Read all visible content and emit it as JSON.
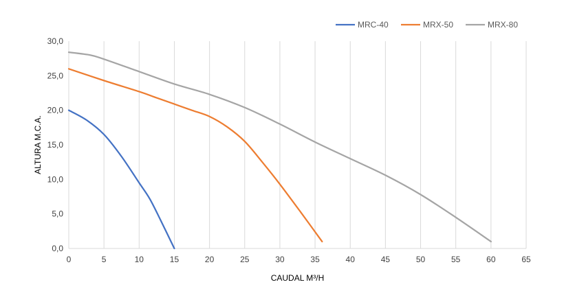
{
  "chart_data": {
    "type": "line",
    "title": "",
    "xlabel": "CAUDAL M³/H",
    "ylabel": "ALTURA M.C.A.",
    "xlim": [
      0,
      65
    ],
    "ylim": [
      0,
      30
    ],
    "x_ticks": [
      0,
      5,
      10,
      15,
      20,
      25,
      30,
      35,
      40,
      45,
      50,
      55,
      60,
      65
    ],
    "y_ticks": [
      0,
      5,
      10,
      15,
      20,
      25,
      30
    ],
    "x_tick_labels": [
      "0",
      "5",
      "10",
      "15",
      "20",
      "25",
      "30",
      "35",
      "40",
      "45",
      "50",
      "55",
      "60",
      "65"
    ],
    "y_tick_labels": [
      "0,0",
      "5,0",
      "10,0",
      "15,0",
      "20,0",
      "25,0",
      "30,0"
    ],
    "grid": "vertical",
    "legend_position": "top-right",
    "series": [
      {
        "name": "MRC-40",
        "color": "#4472C4",
        "points": [
          [
            0,
            20
          ],
          [
            2.5,
            18.6
          ],
          [
            5,
            16.5
          ],
          [
            7.5,
            13.3
          ],
          [
            10,
            9.5
          ],
          [
            11.5,
            7.2
          ],
          [
            13,
            4.2
          ],
          [
            15,
            0
          ]
        ]
      },
      {
        "name": "MRX-50",
        "color": "#ED7D31",
        "points": [
          [
            0,
            26
          ],
          [
            5,
            24.3
          ],
          [
            10,
            22.7
          ],
          [
            12.5,
            21.8
          ],
          [
            15,
            20.9
          ],
          [
            17.5,
            20.0
          ],
          [
            20,
            19.1
          ],
          [
            22.5,
            17.6
          ],
          [
            25,
            15.5
          ],
          [
            27.5,
            12.5
          ],
          [
            30,
            9.3
          ],
          [
            33,
            5.2
          ],
          [
            36,
            1
          ]
        ]
      },
      {
        "name": "MRX-80",
        "color": "#A5A5A5",
        "points": [
          [
            0,
            28.4
          ],
          [
            3,
            28.0
          ],
          [
            5,
            27.4
          ],
          [
            10,
            25.6
          ],
          [
            15,
            23.8
          ],
          [
            20,
            22.3
          ],
          [
            25,
            20.4
          ],
          [
            30,
            18.0
          ],
          [
            35,
            15.4
          ],
          [
            40,
            13.0
          ],
          [
            45,
            10.6
          ],
          [
            50,
            7.8
          ],
          [
            55,
            4.5
          ],
          [
            60,
            1
          ]
        ]
      }
    ]
  }
}
